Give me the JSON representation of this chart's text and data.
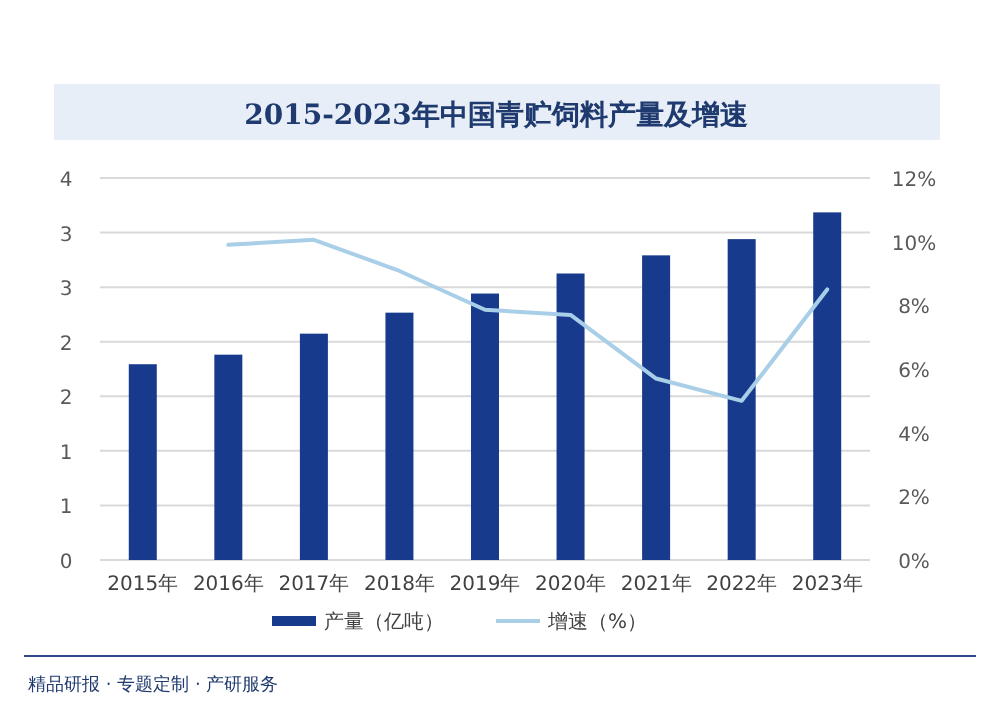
{
  "chart_data": {
    "type": "bar",
    "title": "2015-2023年中国青贮饲料产量及增速",
    "categories": [
      "2015年",
      "2016年",
      "2017年",
      "2018年",
      "2019年",
      "2020年",
      "2021年",
      "2022年",
      "2023年"
    ],
    "series": [
      {
        "name": "产量（亿吨）",
        "color": "#173a8c",
        "values": [
          2.05,
          2.15,
          2.37,
          2.59,
          2.79,
          3.0,
          3.19,
          3.36,
          3.64
        ]
      },
      {
        "name": "增速（%）",
        "type": "line",
        "axis": "y2",
        "color": "#a9cfe8",
        "values": [
          null,
          9.9,
          10.06,
          9.08,
          7.86,
          7.7,
          5.7,
          5.0,
          8.5
        ]
      }
    ],
    "ylim": [
      0,
      4
    ],
    "yticks": [
      {
        "value": 0,
        "label": "0"
      },
      {
        "value": 0.5714,
        "label": "1"
      },
      {
        "value": 1.1429,
        "label": "1"
      },
      {
        "value": 1.7143,
        "label": "2"
      },
      {
        "value": 2.2857,
        "label": "2"
      },
      {
        "value": 2.8571,
        "label": "3"
      },
      {
        "value": 3.4286,
        "label": "3"
      },
      {
        "value": 4,
        "label": "4"
      }
    ],
    "y2lim": [
      0,
      12
    ],
    "y2ticks": [
      {
        "value": 0,
        "label": "0%"
      },
      {
        "value": 2,
        "label": "2%"
      },
      {
        "value": 4,
        "label": "4%"
      },
      {
        "value": 6,
        "label": "6%"
      },
      {
        "value": 8,
        "label": "8%"
      },
      {
        "value": 10,
        "label": "10%"
      },
      {
        "value": 12,
        "label": "12%"
      }
    ],
    "grid": "y",
    "legend": "bottom",
    "annotations": [
      "精品研报 · 专题定制 · 产研服务"
    ]
  }
}
